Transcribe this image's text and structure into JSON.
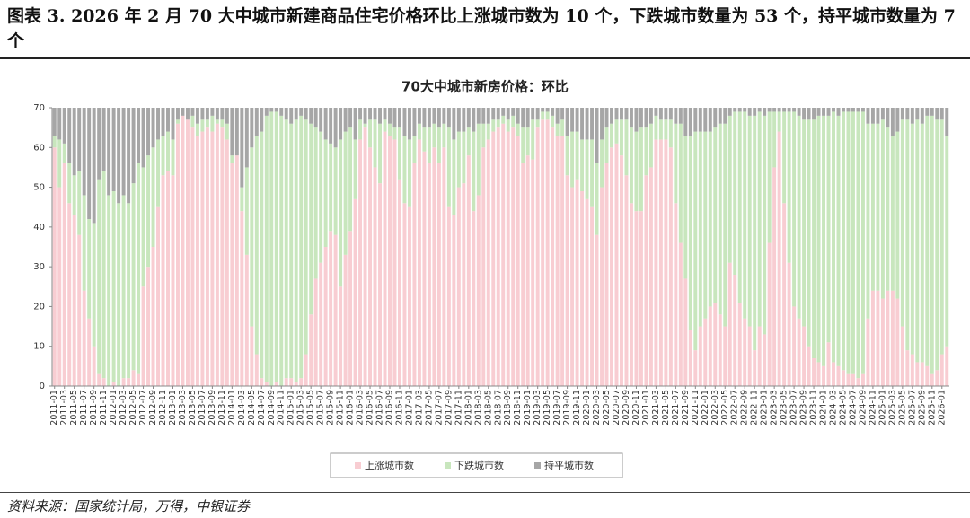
{
  "chart_data": {
    "type": "stacked-bar",
    "figure_title": "图表 3. 2026 年 2 月 70 大中城市新建商品住宅价格环比上涨城市数为 10 个，下跌城市数量为 53 个，持平城市数量为 7 个",
    "title": "70大中城市新房价格：环比",
    "source": "资料来源：国家统计局，万得，中银证券",
    "categories": [
      "2011-01",
      null,
      "2011-03",
      null,
      "2011-05",
      null,
      "2011-07",
      null,
      "2011-09",
      null,
      "2011-11",
      null,
      "2012-01",
      null,
      "2012-03",
      null,
      "2012-05",
      null,
      "2012-07",
      null,
      "2012-09",
      null,
      "2012-11",
      null,
      "2013-01",
      null,
      "2013-03",
      null,
      "2013-05",
      null,
      "2013-07",
      null,
      "2013-09",
      null,
      "2013-11",
      null,
      "2014-01",
      null,
      "2014-03",
      null,
      "2014-05",
      null,
      "2014-07",
      null,
      "2014-09",
      null,
      "2014-11",
      null,
      "2015-01",
      null,
      "2015-03",
      null,
      "2015-05",
      null,
      "2015-07",
      null,
      "2015-09",
      null,
      "2015-11",
      null,
      "2016-01",
      null,
      "2016-03",
      null,
      "2016-05",
      null,
      "2016-07",
      null,
      "2016-09",
      null,
      "2016-11",
      null,
      "2017-01",
      null,
      "2017-03",
      null,
      "2017-05",
      null,
      "2017-07",
      null,
      "2017-09",
      null,
      "2017-11",
      null,
      "2018-01",
      null,
      "2018-03",
      null,
      "2018-05",
      null,
      "2018-07",
      null,
      "2018-09",
      null,
      "2018-11",
      null,
      "2019-01",
      null,
      "2019-03",
      null,
      "2019-05",
      null,
      "2019-07",
      null,
      "2019-09",
      null,
      "2019-11",
      null,
      "2020-01",
      null,
      "2020-03",
      null,
      "2020-05",
      null,
      "2020-07",
      null,
      "2020-09",
      null,
      "2020-11",
      null,
      "2021-01",
      null,
      "2021-03",
      null,
      "2021-05",
      null,
      "2021-07",
      null,
      "2021-09",
      null,
      "2021-11",
      null,
      "2022-01",
      null,
      "2022-03",
      null,
      "2022-05",
      null,
      "2022-07",
      null,
      "2022-09",
      null,
      "2022-11",
      null,
      "2023-01",
      null,
      "2023-03",
      null,
      "2023-05",
      null,
      "2023-07",
      null,
      "2023-09",
      null,
      "2023-11",
      null,
      "2024-01",
      null,
      "2024-03",
      null,
      "2024-05",
      null,
      "2024-07",
      null,
      "2024-09",
      null,
      "2024-11",
      null,
      "2025-01",
      null,
      "2025-03",
      null,
      "2025-05",
      null,
      "2025-07",
      null,
      "2025-09",
      null,
      "2025-11",
      null,
      "2026-01",
      null
    ],
    "series": [
      {
        "name": "上涨城市数",
        "color": "#f8cdd2",
        "values": [
          60,
          50,
          56,
          46,
          43,
          38,
          24,
          17,
          10,
          3,
          2,
          0,
          1,
          0,
          2,
          2,
          4,
          3,
          25,
          30,
          35,
          45,
          53,
          54,
          53,
          66,
          68,
          67,
          65,
          63,
          64,
          65,
          64,
          66,
          65,
          62,
          56,
          58,
          44,
          33,
          15,
          8,
          2,
          1,
          0,
          1,
          0,
          2,
          2,
          1,
          2,
          8,
          18,
          27,
          31,
          35,
          39,
          38,
          25,
          33,
          39,
          47,
          62,
          65,
          60,
          55,
          51,
          64,
          63,
          62,
          52,
          46,
          45,
          56,
          62,
          59,
          56,
          60,
          56,
          60,
          45,
          43,
          50,
          51,
          58,
          44,
          48,
          60,
          62,
          64,
          65,
          66,
          64,
          65,
          63,
          56,
          58,
          57,
          65,
          67,
          67,
          65,
          63,
          63,
          53,
          50,
          52,
          49,
          47,
          45,
          38,
          50,
          56,
          60,
          61,
          58,
          53,
          46,
          44,
          44,
          53,
          55,
          62,
          62,
          62,
          60,
          46,
          36,
          27,
          14,
          9,
          15,
          17,
          20,
          21,
          18,
          15,
          31,
          28,
          21,
          17,
          15,
          9,
          15,
          13,
          36,
          55,
          64,
          46,
          31,
          20,
          17,
          15,
          10,
          7,
          6,
          5,
          11,
          6,
          5,
          4,
          3,
          3,
          2,
          3,
          17,
          24,
          24,
          22,
          24,
          24,
          22,
          15,
          9,
          8,
          6,
          6,
          5,
          3,
          4,
          8,
          10
        ]
      },
      {
        "name": "下跌城市数",
        "color": "#c8e6bd",
        "values": [
          3,
          12,
          5,
          10,
          10,
          16,
          24,
          25,
          31,
          49,
          52,
          48,
          48,
          46,
          46,
          44,
          47,
          53,
          30,
          28,
          25,
          17,
          10,
          10,
          9,
          1,
          0,
          0,
          3,
          3,
          3,
          2,
          4,
          1,
          2,
          4,
          2,
          0,
          6,
          22,
          45,
          55,
          62,
          67,
          69,
          68,
          68,
          65,
          64,
          66,
          66,
          59,
          48,
          38,
          33,
          27,
          22,
          22,
          37,
          31,
          26,
          15,
          5,
          1,
          7,
          12,
          15,
          3,
          3,
          3,
          13,
          17,
          17,
          7,
          4,
          6,
          9,
          6,
          9,
          6,
          20,
          19,
          14,
          13,
          7,
          20,
          18,
          6,
          4,
          3,
          2,
          2,
          3,
          3,
          3,
          9,
          7,
          10,
          2,
          2,
          2,
          3,
          3,
          4,
          10,
          14,
          12,
          13,
          15,
          17,
          18,
          12,
          9,
          6,
          6,
          9,
          14,
          19,
          20,
          21,
          12,
          11,
          6,
          5,
          5,
          7,
          20,
          30,
          36,
          49,
          55,
          49,
          47,
          44,
          44,
          48,
          51,
          37,
          41,
          48,
          52,
          53,
          59,
          54,
          55,
          33,
          14,
          5,
          23,
          38,
          49,
          51,
          52,
          57,
          60,
          62,
          63,
          57,
          63,
          63,
          65,
          66,
          66,
          67,
          66,
          49,
          42,
          42,
          45,
          41,
          39,
          42,
          52,
          58,
          58,
          61,
          60,
          63,
          65,
          63,
          59,
          53
        ]
      },
      {
        "name": "持平城市数",
        "color": "#a6a6a6",
        "values": [
          7,
          8,
          9,
          14,
          17,
          16,
          22,
          28,
          29,
          18,
          16,
          22,
          21,
          24,
          22,
          24,
          19,
          14,
          15,
          12,
          10,
          8,
          7,
          6,
          8,
          3,
          2,
          3,
          2,
          4,
          3,
          3,
          2,
          3,
          3,
          4,
          12,
          12,
          20,
          15,
          10,
          7,
          6,
          2,
          1,
          1,
          2,
          3,
          4,
          3,
          2,
          3,
          4,
          5,
          6,
          8,
          9,
          10,
          8,
          6,
          5,
          8,
          3,
          4,
          3,
          3,
          4,
          3,
          4,
          5,
          5,
          7,
          8,
          7,
          4,
          5,
          5,
          4,
          5,
          4,
          5,
          8,
          6,
          6,
          5,
          6,
          4,
          4,
          4,
          3,
          3,
          2,
          3,
          2,
          4,
          5,
          5,
          3,
          3,
          1,
          1,
          2,
          4,
          3,
          7,
          6,
          6,
          8,
          8,
          8,
          14,
          8,
          5,
          4,
          3,
          3,
          3,
          5,
          6,
          5,
          5,
          4,
          2,
          3,
          3,
          3,
          4,
          4,
          7,
          7,
          6,
          6,
          6,
          6,
          5,
          4,
          4,
          2,
          1,
          1,
          1,
          2,
          2,
          1,
          2,
          1,
          1,
          1,
          1,
          1,
          1,
          2,
          3,
          3,
          3,
          2,
          2,
          2,
          1,
          2,
          1,
          1,
          1,
          1,
          1,
          4,
          4,
          4,
          3,
          5,
          7,
          6,
          3,
          3,
          4,
          3,
          4,
          2,
          2,
          3,
          3,
          7
        ]
      }
    ],
    "ylim": [
      0,
      70
    ],
    "yticks": [
      0,
      10,
      20,
      30,
      40,
      50,
      60,
      70
    ],
    "legend": "bottom"
  }
}
